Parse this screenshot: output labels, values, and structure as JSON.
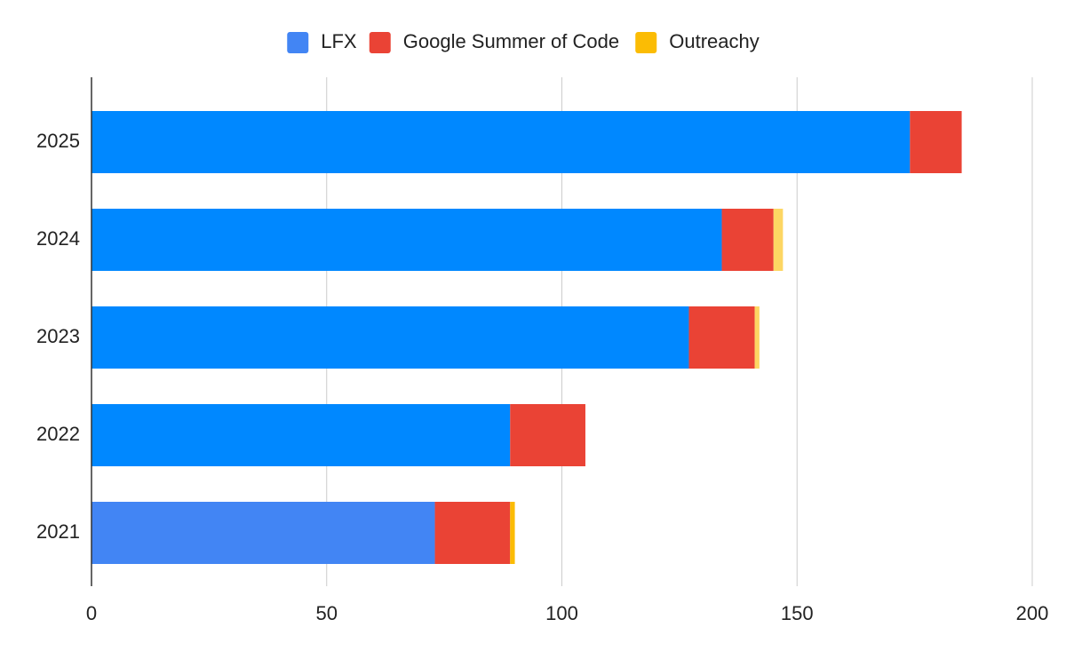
{
  "chart_data": {
    "type": "stacked_bar_horizontal",
    "categories": [
      "2025",
      "2024",
      "2023",
      "2022",
      "2021"
    ],
    "series": [
      {
        "name": "LFX",
        "color": "#4285f4",
        "point_colors": [
          "#0088ff",
          "#0088ff",
          "#0088ff",
          "#0088ff",
          "#4285f4"
        ],
        "values": [
          174,
          134,
          127,
          89,
          73
        ]
      },
      {
        "name": "Google Summer of Code",
        "color": "#ea4335",
        "values": [
          11,
          11,
          14,
          16,
          16
        ]
      },
      {
        "name": "Outreachy",
        "color": "#fbbc04",
        "point_colors": [
          "#fbbc04",
          "#fdd663",
          "#fdd663",
          "#fbbc04",
          "#fbbc04"
        ],
        "values": [
          0,
          2,
          1,
          0,
          1
        ]
      }
    ],
    "xlim": [
      0,
      200
    ],
    "xticks": [
      0,
      50,
      100,
      150,
      200
    ],
    "grid": true,
    "legend": "top"
  }
}
